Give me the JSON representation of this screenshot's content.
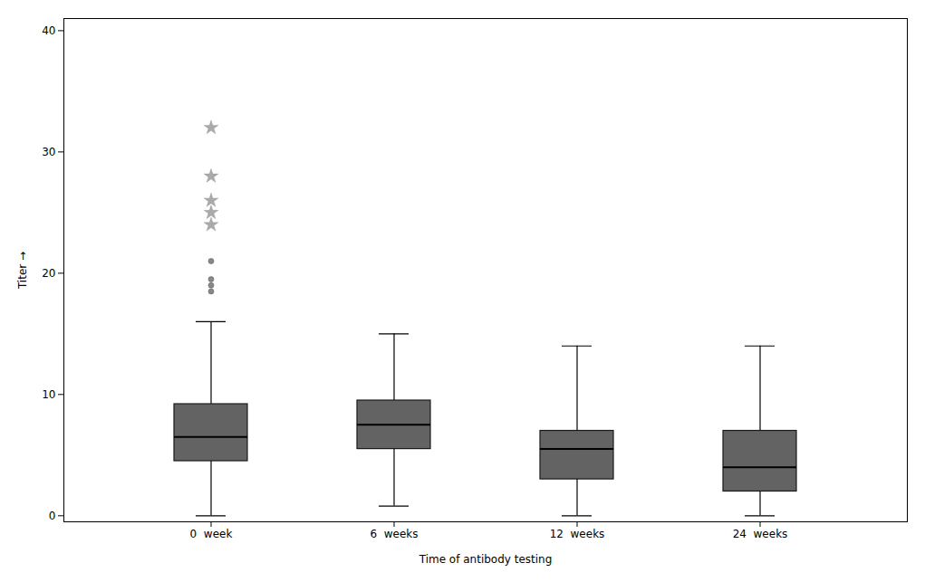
{
  "chart_data": {
    "type": "box",
    "xlabel": "Time of antibody testing",
    "ylabel": "Titer",
    "categories": [
      "0  week",
      "6  weeks",
      "12  weeks",
      "24  weeks"
    ],
    "color": "#636363",
    "ylim": [
      -0.5,
      41
    ],
    "yticks": [
      0,
      10,
      20,
      30,
      40
    ],
    "grid": false,
    "boxes": [
      {
        "q1": 4.5,
        "median": 6.5,
        "q3": 9.2,
        "whisker_low": 0.0,
        "whisker_high": 16.0,
        "outliers_circle": [
          18.5,
          19.0,
          19.5,
          21.0
        ],
        "outliers_star": [
          24.0,
          25.0,
          26.0,
          28.0,
          32.0
        ]
      },
      {
        "q1": 5.5,
        "median": 7.5,
        "q3": 9.5,
        "whisker_low": 0.8,
        "whisker_high": 15.0,
        "outliers_circle": [],
        "outliers_star": []
      },
      {
        "q1": 3.0,
        "median": 5.5,
        "q3": 7.0,
        "whisker_low": 0.0,
        "whisker_high": 14.0,
        "outliers_circle": [],
        "outliers_star": []
      },
      {
        "q1": 2.0,
        "median": 4.0,
        "q3": 7.0,
        "whisker_low": 0.0,
        "whisker_high": 14.0,
        "outliers_circle": [],
        "outliers_star": []
      }
    ]
  }
}
